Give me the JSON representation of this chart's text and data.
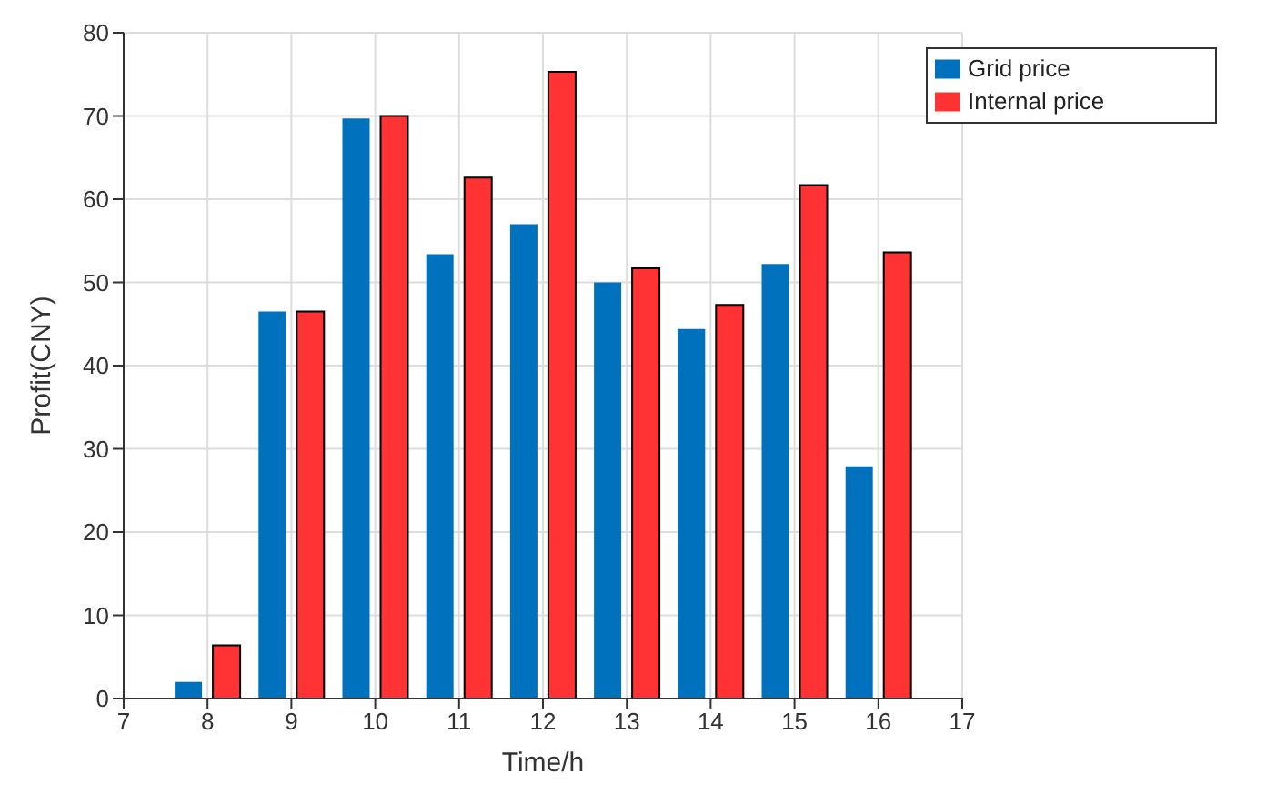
{
  "chart_data": {
    "type": "bar",
    "xlabel": "Time/h",
    "ylabel": "Profit(CNY)",
    "x": [
      8,
      9,
      10,
      11,
      12,
      13,
      14,
      15,
      16
    ],
    "series": [
      {
        "name": "Grid price",
        "color": "#0072bd",
        "values": [
          2,
          46.5,
          69.7,
          53.4,
          57,
          50,
          44.4,
          52.2,
          27.9
        ]
      },
      {
        "name": "Internal price",
        "color": "#ff3333",
        "values": [
          6.4,
          46.5,
          70,
          62.6,
          75.3,
          51.7,
          47.3,
          61.7,
          53.6
        ]
      }
    ],
    "xlim": [
      7,
      17
    ],
    "xticks": [
      7,
      8,
      9,
      10,
      11,
      12,
      13,
      14,
      15,
      16,
      17
    ],
    "ylim": [
      0,
      80
    ],
    "yticks": [
      0,
      10,
      20,
      30,
      40,
      50,
      60,
      70,
      80
    ],
    "grid": true,
    "legend": "top right"
  }
}
